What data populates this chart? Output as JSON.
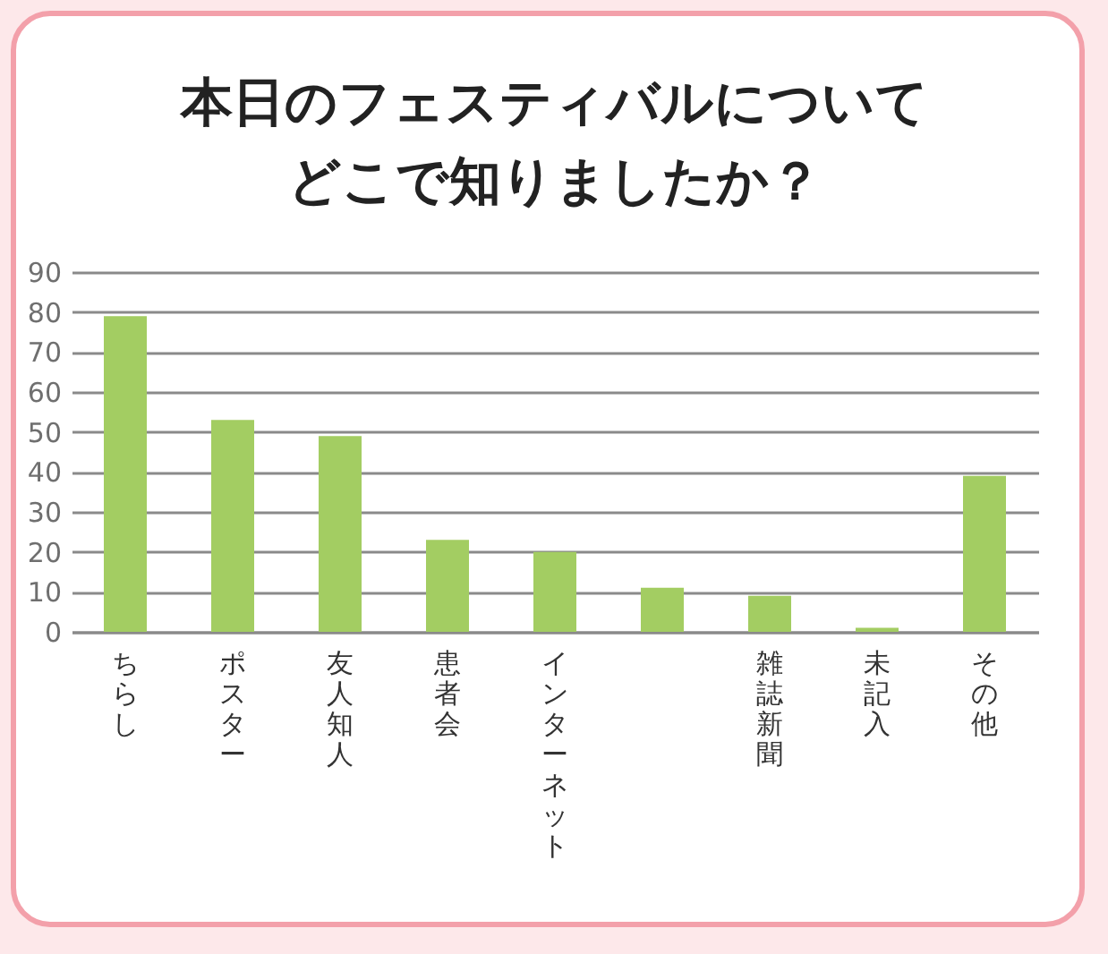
{
  "chart_data": {
    "type": "bar",
    "title": "本日のフェスティバルについてどこで知りましたか？",
    "categories": [
      "ちらし",
      "ポスター",
      "友人知人",
      "患者会",
      "インターネット",
      null,
      "雑誌新聞",
      "未記入",
      "その他"
    ],
    "values": [
      79,
      53,
      49,
      23,
      20,
      11,
      9,
      1,
      39
    ],
    "color": "#a3cd62",
    "ylim": [
      0,
      90
    ],
    "yticks": [
      0,
      10,
      20,
      30,
      40,
      50,
      60,
      70,
      80,
      90
    ],
    "grid": "y"
  }
}
